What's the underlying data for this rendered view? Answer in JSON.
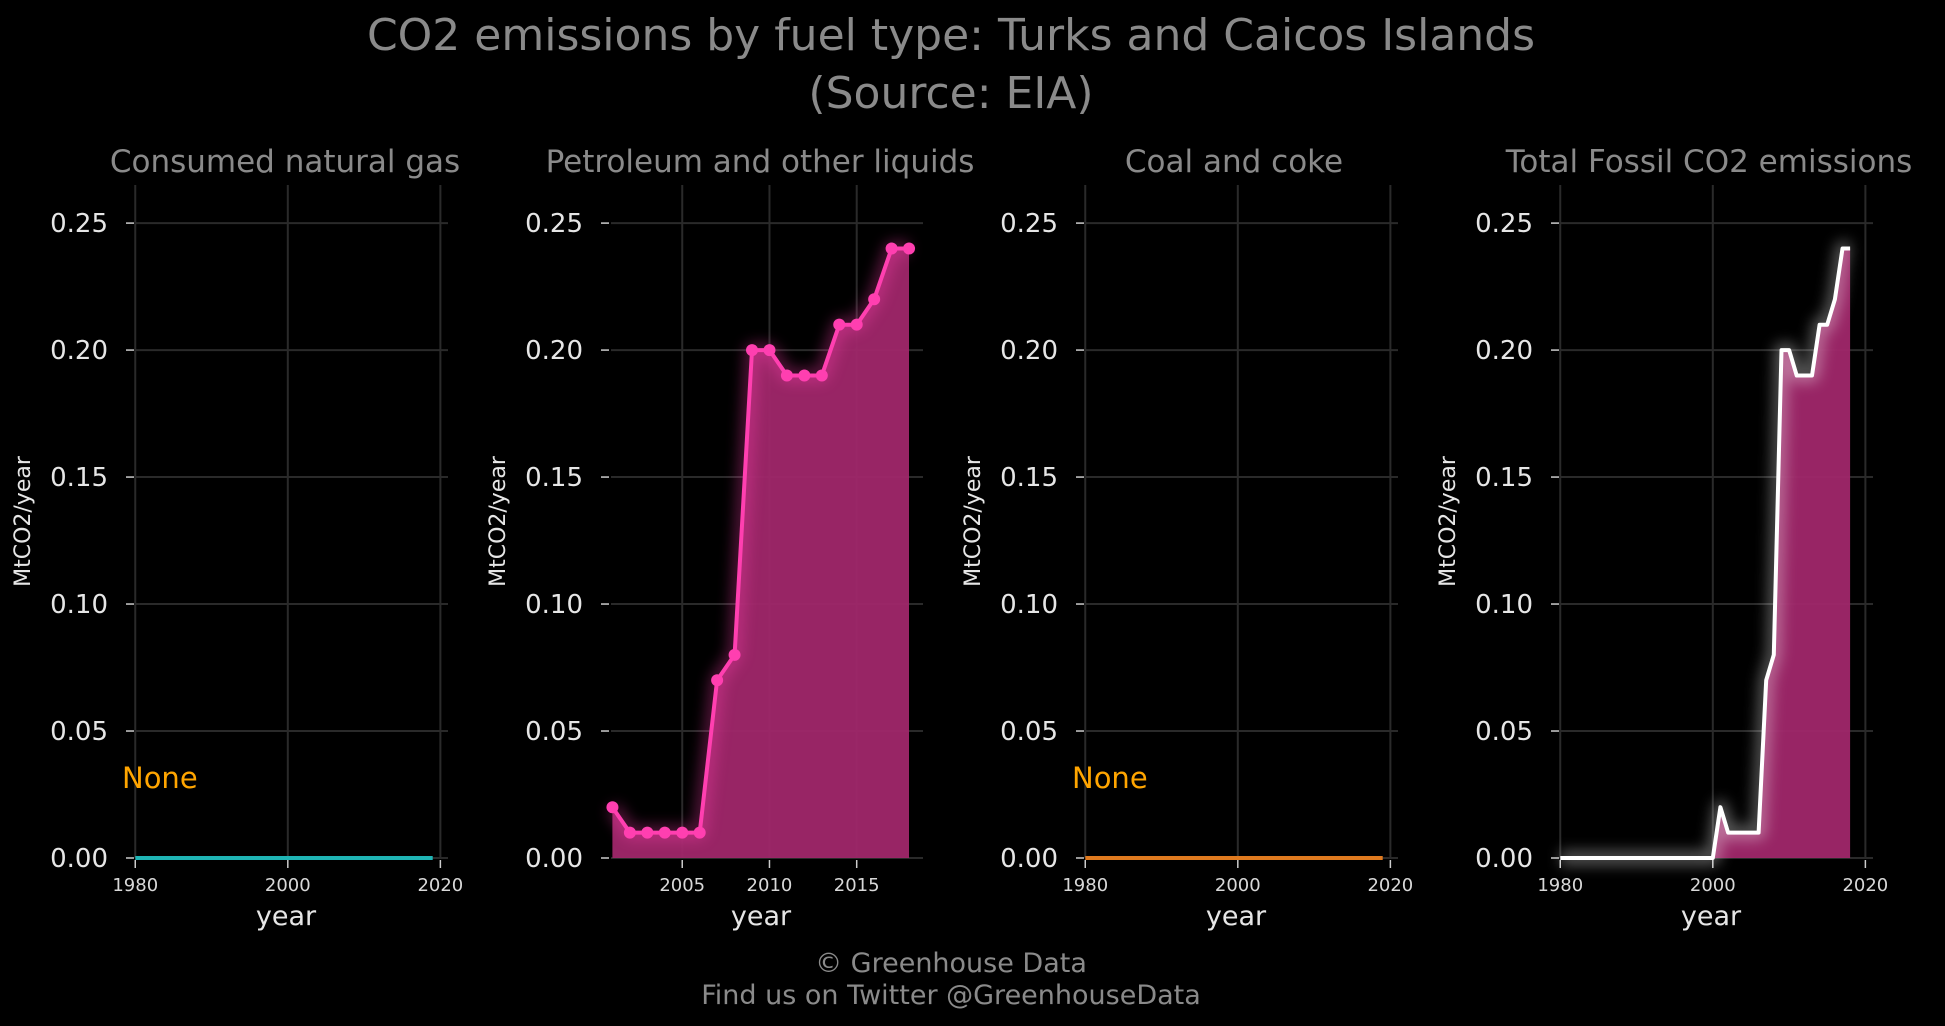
{
  "title_line1": "CO2 emissions by fuel type: Turks and Caicos Islands",
  "title_line2": "(Source: EIA)",
  "footer_line1": "© Greenhouse Data",
  "footer_line2": "Find us on Twitter @GreenhouseData",
  "chart_data": [
    {
      "type": "line",
      "title": "Consumed natural gas",
      "xlabel": "year",
      "ylabel": "MtCO2/year",
      "xlim": [
        1978,
        2021
      ],
      "ylim": [
        0,
        0.265
      ],
      "xticks": [
        1980,
        2000,
        2020
      ],
      "yticks": [
        0.0,
        0.05,
        0.1,
        0.15,
        0.2,
        0.25
      ],
      "grid": true,
      "annotation": "None",
      "color": "#1fb5b5",
      "series": [
        {
          "x": [
            1980,
            2019
          ],
          "values": [
            0,
            0
          ]
        }
      ]
    },
    {
      "type": "area",
      "title": "Petroleum and other liquids",
      "xlabel": "year",
      "ylabel": "MtCO2/year",
      "xlim": [
        2000,
        2018.8
      ],
      "ylim": [
        0,
        0.265
      ],
      "xticks": [
        2005,
        2010,
        2015
      ],
      "yticks": [
        0.0,
        0.05,
        0.1,
        0.15,
        0.2,
        0.25
      ],
      "grid": true,
      "color": "#ff3fb0",
      "fill_color": "#a0276a",
      "markers": true,
      "series": [
        {
          "x": [
            2001,
            2002,
            2003,
            2004,
            2005,
            2006,
            2007,
            2008,
            2009,
            2010,
            2011,
            2012,
            2013,
            2014,
            2015,
            2016,
            2017,
            2018
          ],
          "values": [
            0.02,
            0.01,
            0.01,
            0.01,
            0.01,
            0.01,
            0.07,
            0.08,
            0.2,
            0.2,
            0.19,
            0.19,
            0.19,
            0.21,
            0.21,
            0.22,
            0.24,
            0.24
          ]
        }
      ]
    },
    {
      "type": "line",
      "title": "Coal and coke",
      "xlabel": "year",
      "ylabel": "MtCO2/year",
      "xlim": [
        1978,
        2021
      ],
      "ylim": [
        0,
        0.265
      ],
      "xticks": [
        1980,
        2000,
        2020
      ],
      "yticks": [
        0.0,
        0.05,
        0.1,
        0.15,
        0.2,
        0.25
      ],
      "grid": true,
      "annotation": "None",
      "color": "#e07a1f",
      "series": [
        {
          "x": [
            1980,
            2019
          ],
          "values": [
            0,
            0
          ]
        }
      ]
    },
    {
      "type": "area",
      "title": "Total Fossil CO2 emissions",
      "xlabel": "year",
      "ylabel": "MtCO2/year",
      "xlim": [
        1978,
        2021
      ],
      "ylim": [
        0,
        0.265
      ],
      "xticks": [
        1980,
        2000,
        2020
      ],
      "yticks": [
        0.0,
        0.05,
        0.1,
        0.15,
        0.2,
        0.25
      ],
      "grid": true,
      "color": "#ffffff",
      "fill_color": "#a0276a",
      "markers": false,
      "series": [
        {
          "x": [
            1980,
            1981,
            1982,
            1983,
            1984,
            1985,
            1986,
            1987,
            1988,
            1989,
            1990,
            1991,
            1992,
            1993,
            1994,
            1995,
            1996,
            1997,
            1998,
            1999,
            2000,
            2001,
            2002,
            2003,
            2004,
            2005,
            2006,
            2007,
            2008,
            2009,
            2010,
            2011,
            2012,
            2013,
            2014,
            2015,
            2016,
            2017,
            2018
          ],
          "values": [
            0,
            0,
            0,
            0,
            0,
            0,
            0,
            0,
            0,
            0,
            0,
            0,
            0,
            0,
            0,
            0,
            0,
            0,
            0,
            0,
            0,
            0.02,
            0.01,
            0.01,
            0.01,
            0.01,
            0.01,
            0.07,
            0.08,
            0.2,
            0.2,
            0.19,
            0.19,
            0.19,
            0.21,
            0.21,
            0.22,
            0.24,
            0.24
          ]
        }
      ]
    }
  ]
}
